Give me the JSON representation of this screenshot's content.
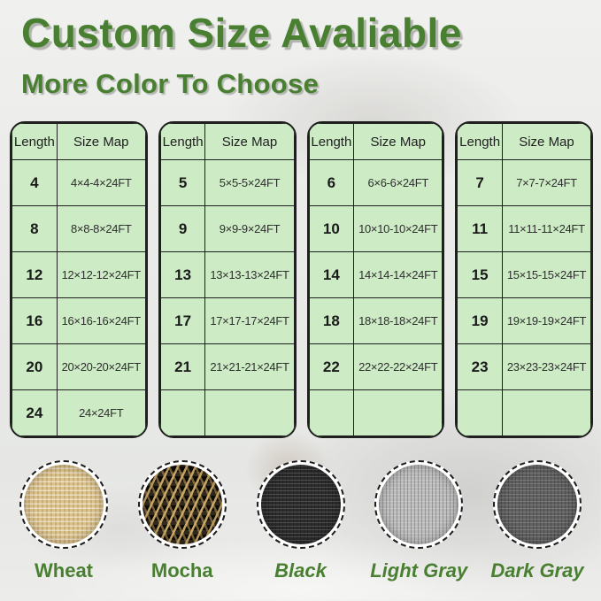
{
  "page": {
    "title": "Custom Size Avaliable",
    "subtitle": "More Color To Choose"
  },
  "theme": {
    "heading_green": "#487f30",
    "table_green": "#cdecc5",
    "table_border": "#1f1f1f",
    "cell_text": "#2e2e2e"
  },
  "size_tables": [
    {
      "headers": [
        "Length",
        "Size Map"
      ],
      "rows": [
        [
          "4",
          "4×4-4×24FT"
        ],
        [
          "8",
          "8×8-8×24FT"
        ],
        [
          "12",
          "12×12-12×24FT"
        ],
        [
          "16",
          "16×16-16×24FT"
        ],
        [
          "20",
          "20×20-20×24FT"
        ],
        [
          "24",
          "24×24FT"
        ]
      ]
    },
    {
      "headers": [
        "Length",
        "Size Map"
      ],
      "rows": [
        [
          "5",
          "5×5-5×24FT"
        ],
        [
          "9",
          "9×9-9×24FT"
        ],
        [
          "13",
          "13×13-13×24FT"
        ],
        [
          "17",
          "17×17-17×24FT"
        ],
        [
          "21",
          "21×21-21×24FT"
        ],
        [
          "",
          ""
        ]
      ]
    },
    {
      "headers": [
        "Length",
        "Size Map"
      ],
      "rows": [
        [
          "6",
          "6×6-6×24FT"
        ],
        [
          "10",
          "10×10-10×24FT"
        ],
        [
          "14",
          "14×14-14×24FT"
        ],
        [
          "18",
          "18×18-18×24FT"
        ],
        [
          "22",
          "22×22-22×24FT"
        ],
        [
          "",
          ""
        ]
      ]
    },
    {
      "headers": [
        "Length",
        "Size Map"
      ],
      "rows": [
        [
          "7",
          "7×7-7×24FT"
        ],
        [
          "11",
          "11×11-11×24FT"
        ],
        [
          "15",
          "15×15-15×24FT"
        ],
        [
          "19",
          "19×19-19×24FT"
        ],
        [
          "23",
          "23×23-23×24FT"
        ],
        [
          "",
          ""
        ]
      ]
    }
  ],
  "color_swatches": [
    {
      "label": "Wheat",
      "key": "wheat",
      "base_color": "#dcc38c",
      "italic": false
    },
    {
      "label": "Mocha",
      "key": "mocha",
      "base_color": "#1b1712",
      "italic": false
    },
    {
      "label": "Black",
      "key": "black",
      "base_color": "#2c2c2c",
      "italic": true
    },
    {
      "label": "Light Gray",
      "key": "light-gray",
      "base_color": "#bcbcbc",
      "italic": true
    },
    {
      "label": "Dark Gray",
      "key": "dark-gray",
      "base_color": "#616161",
      "italic": true
    }
  ]
}
